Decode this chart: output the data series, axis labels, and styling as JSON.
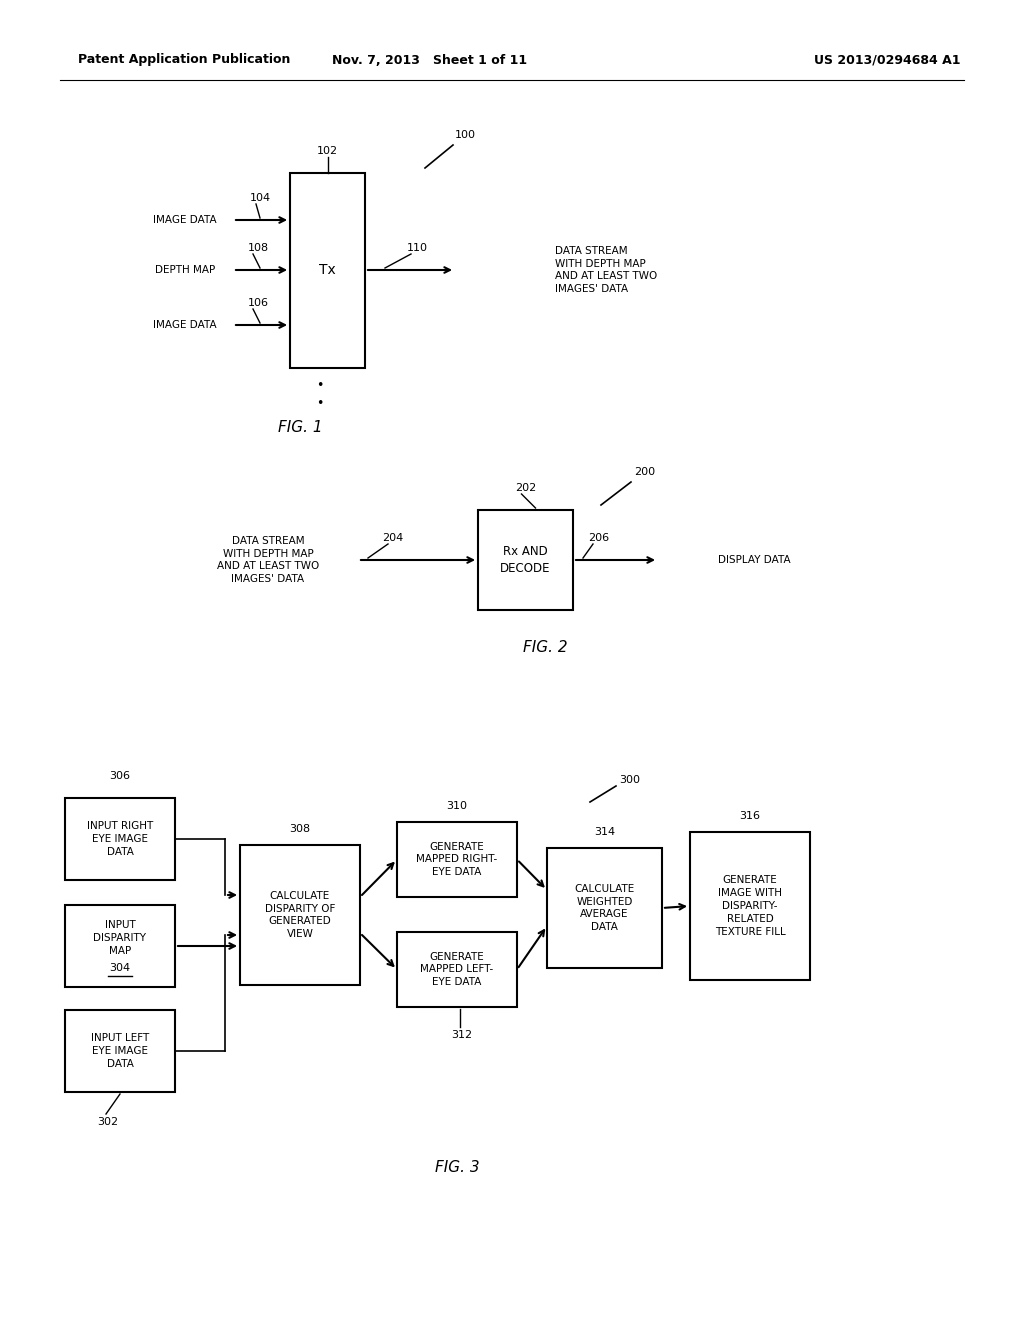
{
  "bg_color": "#ffffff",
  "header_left": "Patent Application Publication",
  "header_mid": "Nov. 7, 2013   Sheet 1 of 11",
  "header_right": "US 2013/0294684 A1"
}
